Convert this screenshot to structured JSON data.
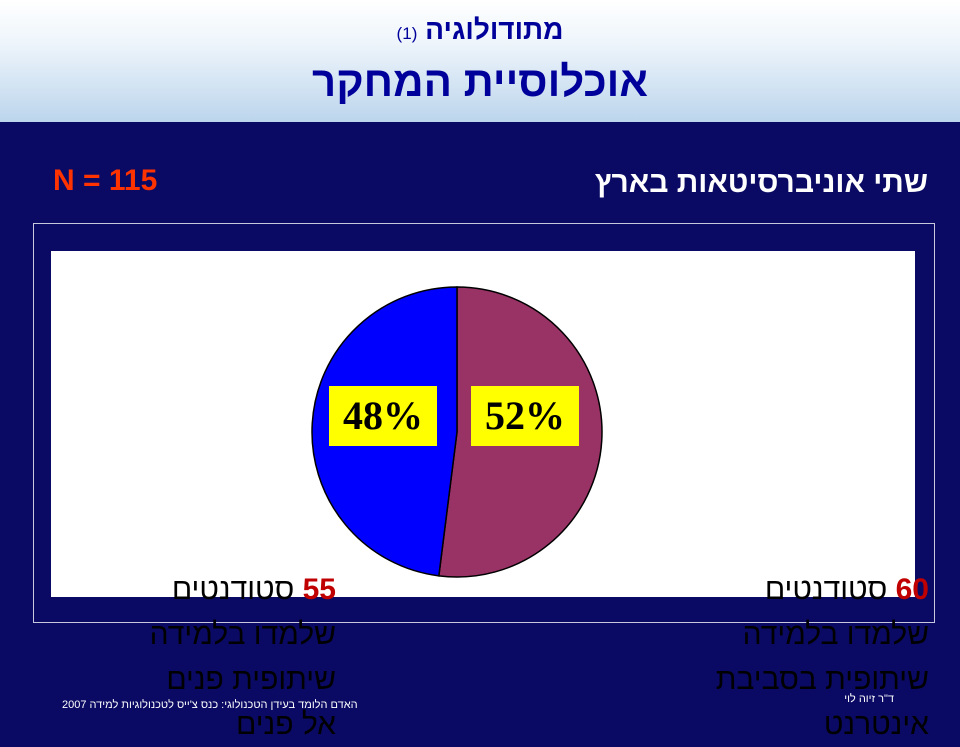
{
  "header": {
    "top_title": "מתודולוגיה",
    "top_title_num": "(1)",
    "main_title": "אוכלוסיית המחקר"
  },
  "subtitle": {
    "sample_size": "N = 115",
    "universities": "שתי אוניברסיטאות בארץ"
  },
  "captions": {
    "internet": {
      "count": "60",
      "line1_rest": " סטודנטים",
      "line2": "שלמדו בלמידה",
      "line3": "שיתופית בסביבת",
      "line4": "אינטרנט"
    },
    "face": {
      "count": "55",
      "line1_rest": " סטודנטים",
      "line2": "שלמדו בלמידה",
      "line3": "שיתופית פנים",
      "line4": "אל פנים"
    }
  },
  "chart_data": {
    "type": "pie",
    "slices": [
      {
        "label": "52%",
        "value": 52,
        "color": "#993366"
      },
      {
        "label": "48%",
        "value": 48,
        "color": "#0000ff"
      }
    ]
  },
  "footer": {
    "conference": "האדם הלומד בעידן הטכנולוגי: כנס צ'ייס לטכנולוגיות למידה 2007",
    "author": "ד\"ר זיוה לוי"
  }
}
